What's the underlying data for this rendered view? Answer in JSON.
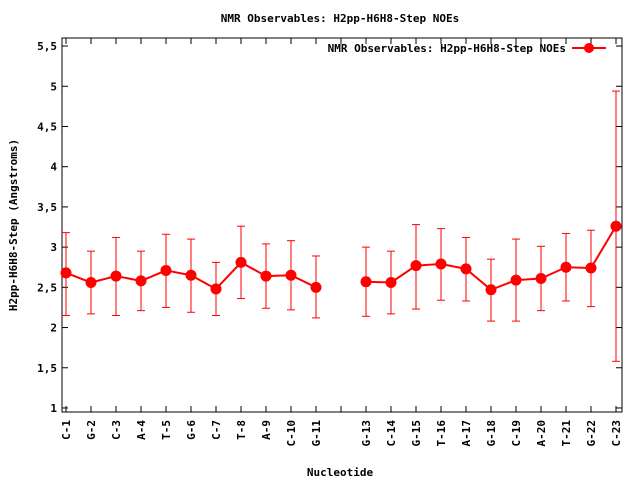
{
  "chart_data": {
    "type": "line",
    "title": "NMR Observables: H2pp-H6H8-Step NOEs",
    "xlabel": "Nucleotide",
    "ylabel": "H2pp-H6H8-Step (Angstroms)",
    "ylim": [
      0.95,
      5.6
    ],
    "yticks": [
      "1",
      "1.5",
      "2",
      "2.5",
      "3",
      "3.5",
      "4",
      "4.5",
      "5",
      "5.5"
    ],
    "grid": false,
    "legend_position": "top-right",
    "series_color": "#ff0000",
    "categories": [
      "C-1",
      "G-2",
      "C-3",
      "A-4",
      "T-5",
      "G-6",
      "C-7",
      "T-8",
      "A-9",
      "C-10",
      "G-11",
      "",
      "G-13",
      "C-14",
      "G-15",
      "T-16",
      "A-17",
      "G-18",
      "C-19",
      "A-20",
      "T-21",
      "G-22",
      "C-23"
    ],
    "series": [
      {
        "name": "NMR Observables: H2pp-H6H8-Step NOEs",
        "values": [
          2.68,
          2.56,
          2.64,
          2.58,
          2.71,
          2.65,
          2.48,
          2.81,
          2.64,
          2.65,
          2.5,
          null,
          2.57,
          2.56,
          2.77,
          2.79,
          2.73,
          2.47,
          2.59,
          2.61,
          2.75,
          2.74,
          3.26
        ],
        "error_low": [
          2.15,
          2.17,
          2.15,
          2.21,
          2.25,
          2.19,
          2.15,
          2.36,
          2.24,
          2.22,
          2.12,
          null,
          2.14,
          2.17,
          2.23,
          2.34,
          2.33,
          2.08,
          2.08,
          2.21,
          2.33,
          2.26,
          1.58
        ],
        "error_high": [
          3.18,
          2.95,
          3.12,
          2.95,
          3.16,
          3.1,
          2.81,
          3.26,
          3.04,
          3.08,
          2.89,
          null,
          3.0,
          2.95,
          3.28,
          3.23,
          3.12,
          2.85,
          3.1,
          3.01,
          3.17,
          3.21,
          4.94
        ]
      }
    ]
  }
}
